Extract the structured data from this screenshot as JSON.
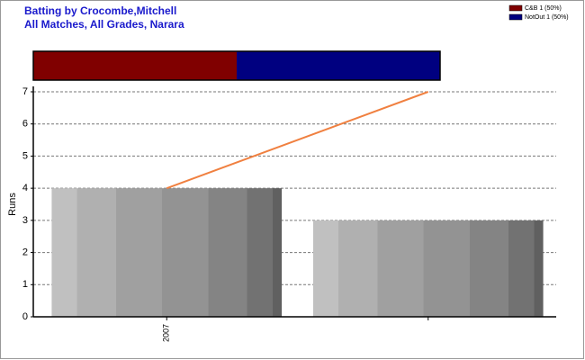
{
  "chart_data": {
    "type": "bar",
    "title": "Batting by Crocombe,Mitchell",
    "subtitle": "All Matches, All Grades, Narara",
    "categories": [
      "2007",
      null
    ],
    "values": [
      4,
      3
    ],
    "line": {
      "color": "#f08040",
      "values": [
        4,
        7
      ]
    },
    "y_label": "Runs",
    "ylim": [
      0,
      7
    ],
    "yticks": [
      0,
      1,
      2,
      3,
      4,
      5,
      6,
      7
    ],
    "grid": true,
    "legend": "top-right",
    "dismissals": [
      {
        "name": "C&B 1 (50%)",
        "color": "#800000",
        "value": 1
      },
      {
        "name": "NotOut 1 (50%)",
        "color": "#000080",
        "value": 1
      }
    ]
  }
}
